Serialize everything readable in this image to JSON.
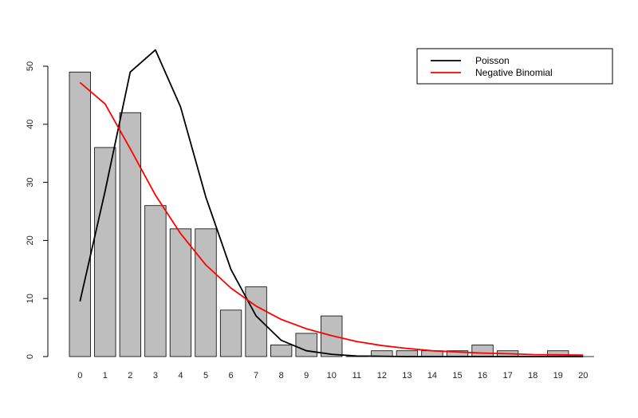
{
  "chart_data": {
    "type": "bar",
    "title": "",
    "xlabel": "",
    "ylabel": "",
    "categories": [
      "0",
      "1",
      "2",
      "3",
      "4",
      "5",
      "6",
      "7",
      "8",
      "9",
      "10",
      "11",
      "12",
      "13",
      "14",
      "15",
      "16",
      "17",
      "18",
      "19",
      "20"
    ],
    "values": [
      49,
      36,
      42,
      26,
      22,
      22,
      8,
      12,
      2,
      4,
      7,
      0,
      1,
      1,
      1,
      1,
      2,
      1,
      0,
      1,
      0
    ],
    "bar_color": "#bebebe",
    "ylim": [
      0,
      52
    ],
    "yticks": [
      0,
      10,
      20,
      30,
      40,
      50
    ],
    "grid": false,
    "legend_position": "top-right",
    "lines": [
      {
        "name": "Poisson",
        "color": "#000000",
        "values": [
          9.5,
          28.5,
          49,
          52.8,
          43,
          27.5,
          15,
          7,
          2.8,
          1,
          0.4,
          0.1,
          0.05,
          0,
          0,
          0,
          0,
          0,
          0,
          0,
          0
        ]
      },
      {
        "name": "Negative Binomial",
        "color": "#ff0000",
        "values": [
          47.2,
          43.5,
          35.8,
          27.8,
          21.2,
          15.8,
          11.8,
          8.7,
          6.4,
          4.8,
          3.6,
          2.6,
          1.9,
          1.4,
          1.0,
          0.8,
          0.6,
          0.5,
          0.35,
          0.3,
          0.25
        ]
      }
    ]
  }
}
